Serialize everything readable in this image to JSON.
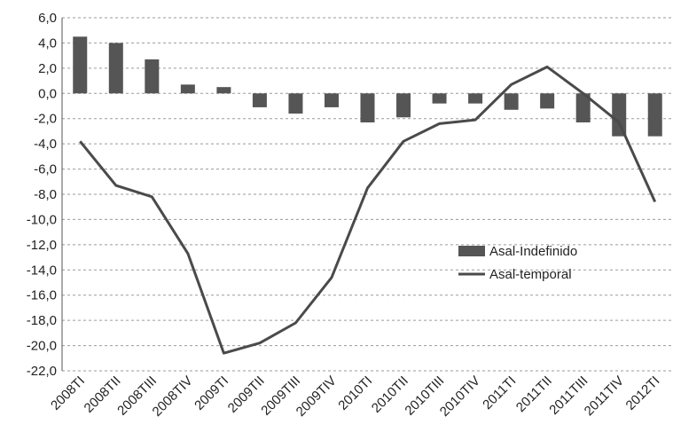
{
  "chart_data": {
    "type": "bar",
    "categories": [
      "2008TI",
      "2008TII",
      "2008TIII",
      "2008TIV",
      "2009TI",
      "2009TII",
      "2009TIII",
      "2009TIV",
      "2010TI",
      "2010TII",
      "2010TIII",
      "2010TIV",
      "2011TI",
      "2011TII",
      "2011TIII",
      "2011TIV",
      "2012TI"
    ],
    "series": [
      {
        "name": "Asal-Indefinido",
        "type": "bar",
        "color": "#555555",
        "values": [
          4.5,
          4.0,
          2.7,
          0.7,
          0.5,
          -1.1,
          -1.6,
          -1.1,
          -2.3,
          -1.9,
          -0.8,
          -0.8,
          -1.3,
          -1.2,
          -2.3,
          -3.4,
          -3.4
        ]
      },
      {
        "name": "Asal-temporal",
        "type": "line",
        "color": "#4a4a4a",
        "values": [
          -3.8,
          -7.3,
          -8.2,
          -12.7,
          -20.6,
          -19.8,
          -18.2,
          -14.6,
          -7.5,
          -3.8,
          -2.4,
          -2.1,
          0.7,
          2.1,
          0.0,
          -2.3,
          -8.6
        ]
      }
    ],
    "yticks": [
      "6,0",
      "4,0",
      "2,0",
      "0,0",
      "-2,0",
      "-4,0",
      "-6,0",
      "-8,0",
      "-10,0",
      "-12,0",
      "-14,0",
      "-16,0",
      "-18,0",
      "-20,0",
      "-22,0"
    ],
    "ylim": [
      -22,
      6
    ],
    "grid": true,
    "legend": "center-right",
    "title": "",
    "xlabel": "",
    "ylabel": ""
  }
}
